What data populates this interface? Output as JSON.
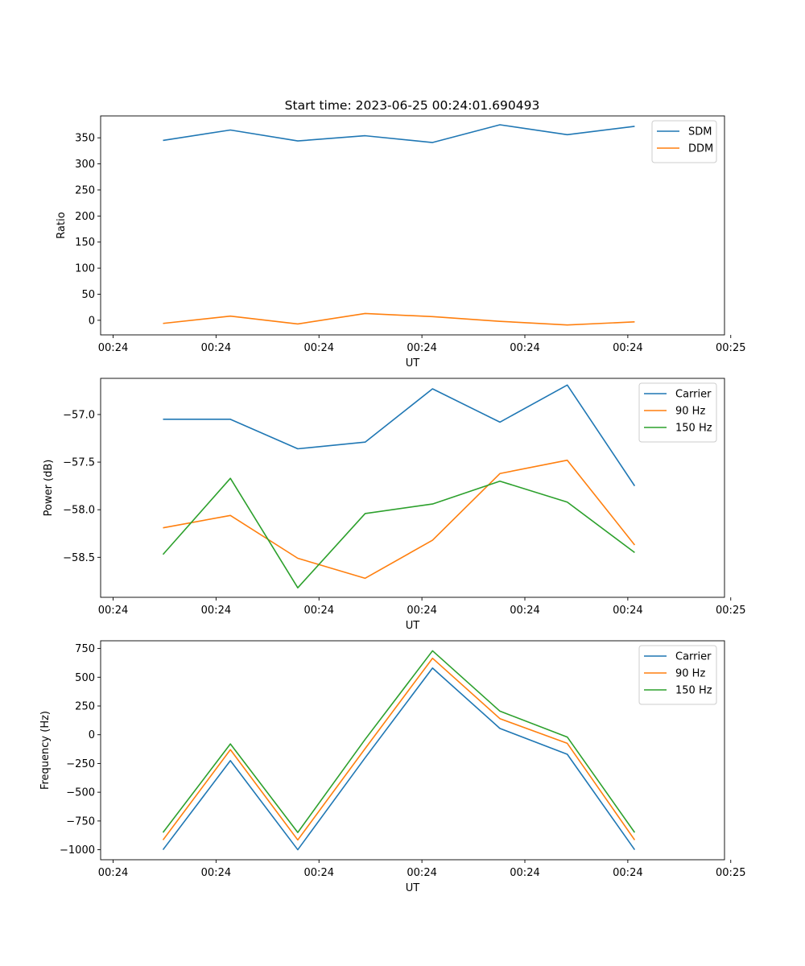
{
  "chart_data": [
    {
      "type": "line",
      "title": "Start time: 2023-06-25 00:24:01.690493",
      "xlabel": "UT",
      "ylabel": "Ratio",
      "xlim": [
        0,
        100
      ],
      "ylim": [
        -28,
        392
      ],
      "x_ticks": [
        2,
        18.5,
        35,
        51.5,
        68,
        84.5,
        101
      ],
      "x_tick_labels": [
        "00:24",
        "00:24",
        "00:24",
        "00:24",
        "00:24",
        "00:24",
        "00:25"
      ],
      "y_ticks": [
        0,
        50,
        100,
        150,
        200,
        250,
        300,
        350
      ],
      "y_tick_labels": [
        "0",
        "50",
        "100",
        "150",
        "200",
        "250",
        "300",
        "350"
      ],
      "x": [
        10,
        20.8,
        31.6,
        42.4,
        53.2,
        64,
        74.8,
        85.6
      ],
      "series": [
        {
          "name": "SDM",
          "color": "#1f77b4",
          "values": [
            345,
            365,
            344,
            354,
            341,
            375,
            356,
            372
          ]
        },
        {
          "name": "DDM",
          "color": "#ff7f0e",
          "values": [
            -6,
            8,
            -7,
            13,
            7,
            -2,
            -9,
            -3
          ]
        }
      ],
      "legend": "top-right",
      "grid": false
    },
    {
      "type": "line",
      "title": "",
      "xlabel": "UT",
      "ylabel": "Power (dB)",
      "xlim": [
        0,
        100
      ],
      "ylim": [
        -58.92,
        -56.62
      ],
      "x_ticks": [
        2,
        18.5,
        35,
        51.5,
        68,
        84.5,
        101
      ],
      "x_tick_labels": [
        "00:24",
        "00:24",
        "00:24",
        "00:24",
        "00:24",
        "00:24",
        "00:25"
      ],
      "y_ticks": [
        -58.5,
        -58.0,
        -57.5,
        -57.0
      ],
      "y_tick_labels": [
        "−58.5",
        "−58.0",
        "−57.5",
        "−57.0"
      ],
      "x": [
        10,
        20.8,
        31.6,
        42.4,
        53.2,
        64,
        74.8,
        85.6
      ],
      "series": [
        {
          "name": "Carrier",
          "color": "#1f77b4",
          "values": [
            -57.05,
            -57.05,
            -57.36,
            -57.29,
            -56.73,
            -57.08,
            -56.69,
            -57.75
          ]
        },
        {
          "name": "90 Hz",
          "color": "#ff7f0e",
          "values": [
            -58.19,
            -58.06,
            -58.51,
            -58.72,
            -58.32,
            -57.62,
            -57.48,
            -58.37
          ]
        },
        {
          "name": "150 Hz",
          "color": "#2ca02c",
          "values": [
            -58.47,
            -57.67,
            -58.82,
            -58.04,
            -57.94,
            -57.7,
            -57.92,
            -58.45
          ]
        }
      ],
      "legend": "top-right",
      "grid": false
    },
    {
      "type": "line",
      "title": "",
      "xlabel": "UT",
      "ylabel": "Frequency (Hz)",
      "xlim": [
        0,
        100
      ],
      "ylim": [
        -1087,
        817
      ],
      "x_ticks": [
        2,
        18.5,
        35,
        51.5,
        68,
        84.5,
        101
      ],
      "x_tick_labels": [
        "00:24",
        "00:24",
        "00:24",
        "00:24",
        "00:24",
        "00:24",
        "00:25"
      ],
      "y_ticks": [
        -1000,
        -750,
        -500,
        -250,
        0,
        250,
        500,
        750
      ],
      "y_tick_labels": [
        "−1000",
        "−750",
        "−500",
        "−250",
        "0",
        "250",
        "500",
        "750"
      ],
      "x": [
        10,
        20.8,
        31.6,
        42.4,
        53.2,
        64,
        74.8,
        85.6
      ],
      "series": [
        {
          "name": "Carrier",
          "color": "#1f77b4",
          "values": [
            -1000,
            -225,
            -1000,
            -200,
            580,
            55,
            -170,
            -1000
          ]
        },
        {
          "name": "90 Hz",
          "color": "#ff7f0e",
          "values": [
            -915,
            -130,
            -915,
            -120,
            665,
            140,
            -75,
            -915
          ]
        },
        {
          "name": "150 Hz",
          "color": "#2ca02c",
          "values": [
            -850,
            -80,
            -850,
            -40,
            730,
            205,
            -20,
            -850
          ]
        }
      ],
      "legend": "top-right",
      "grid": false
    }
  ]
}
